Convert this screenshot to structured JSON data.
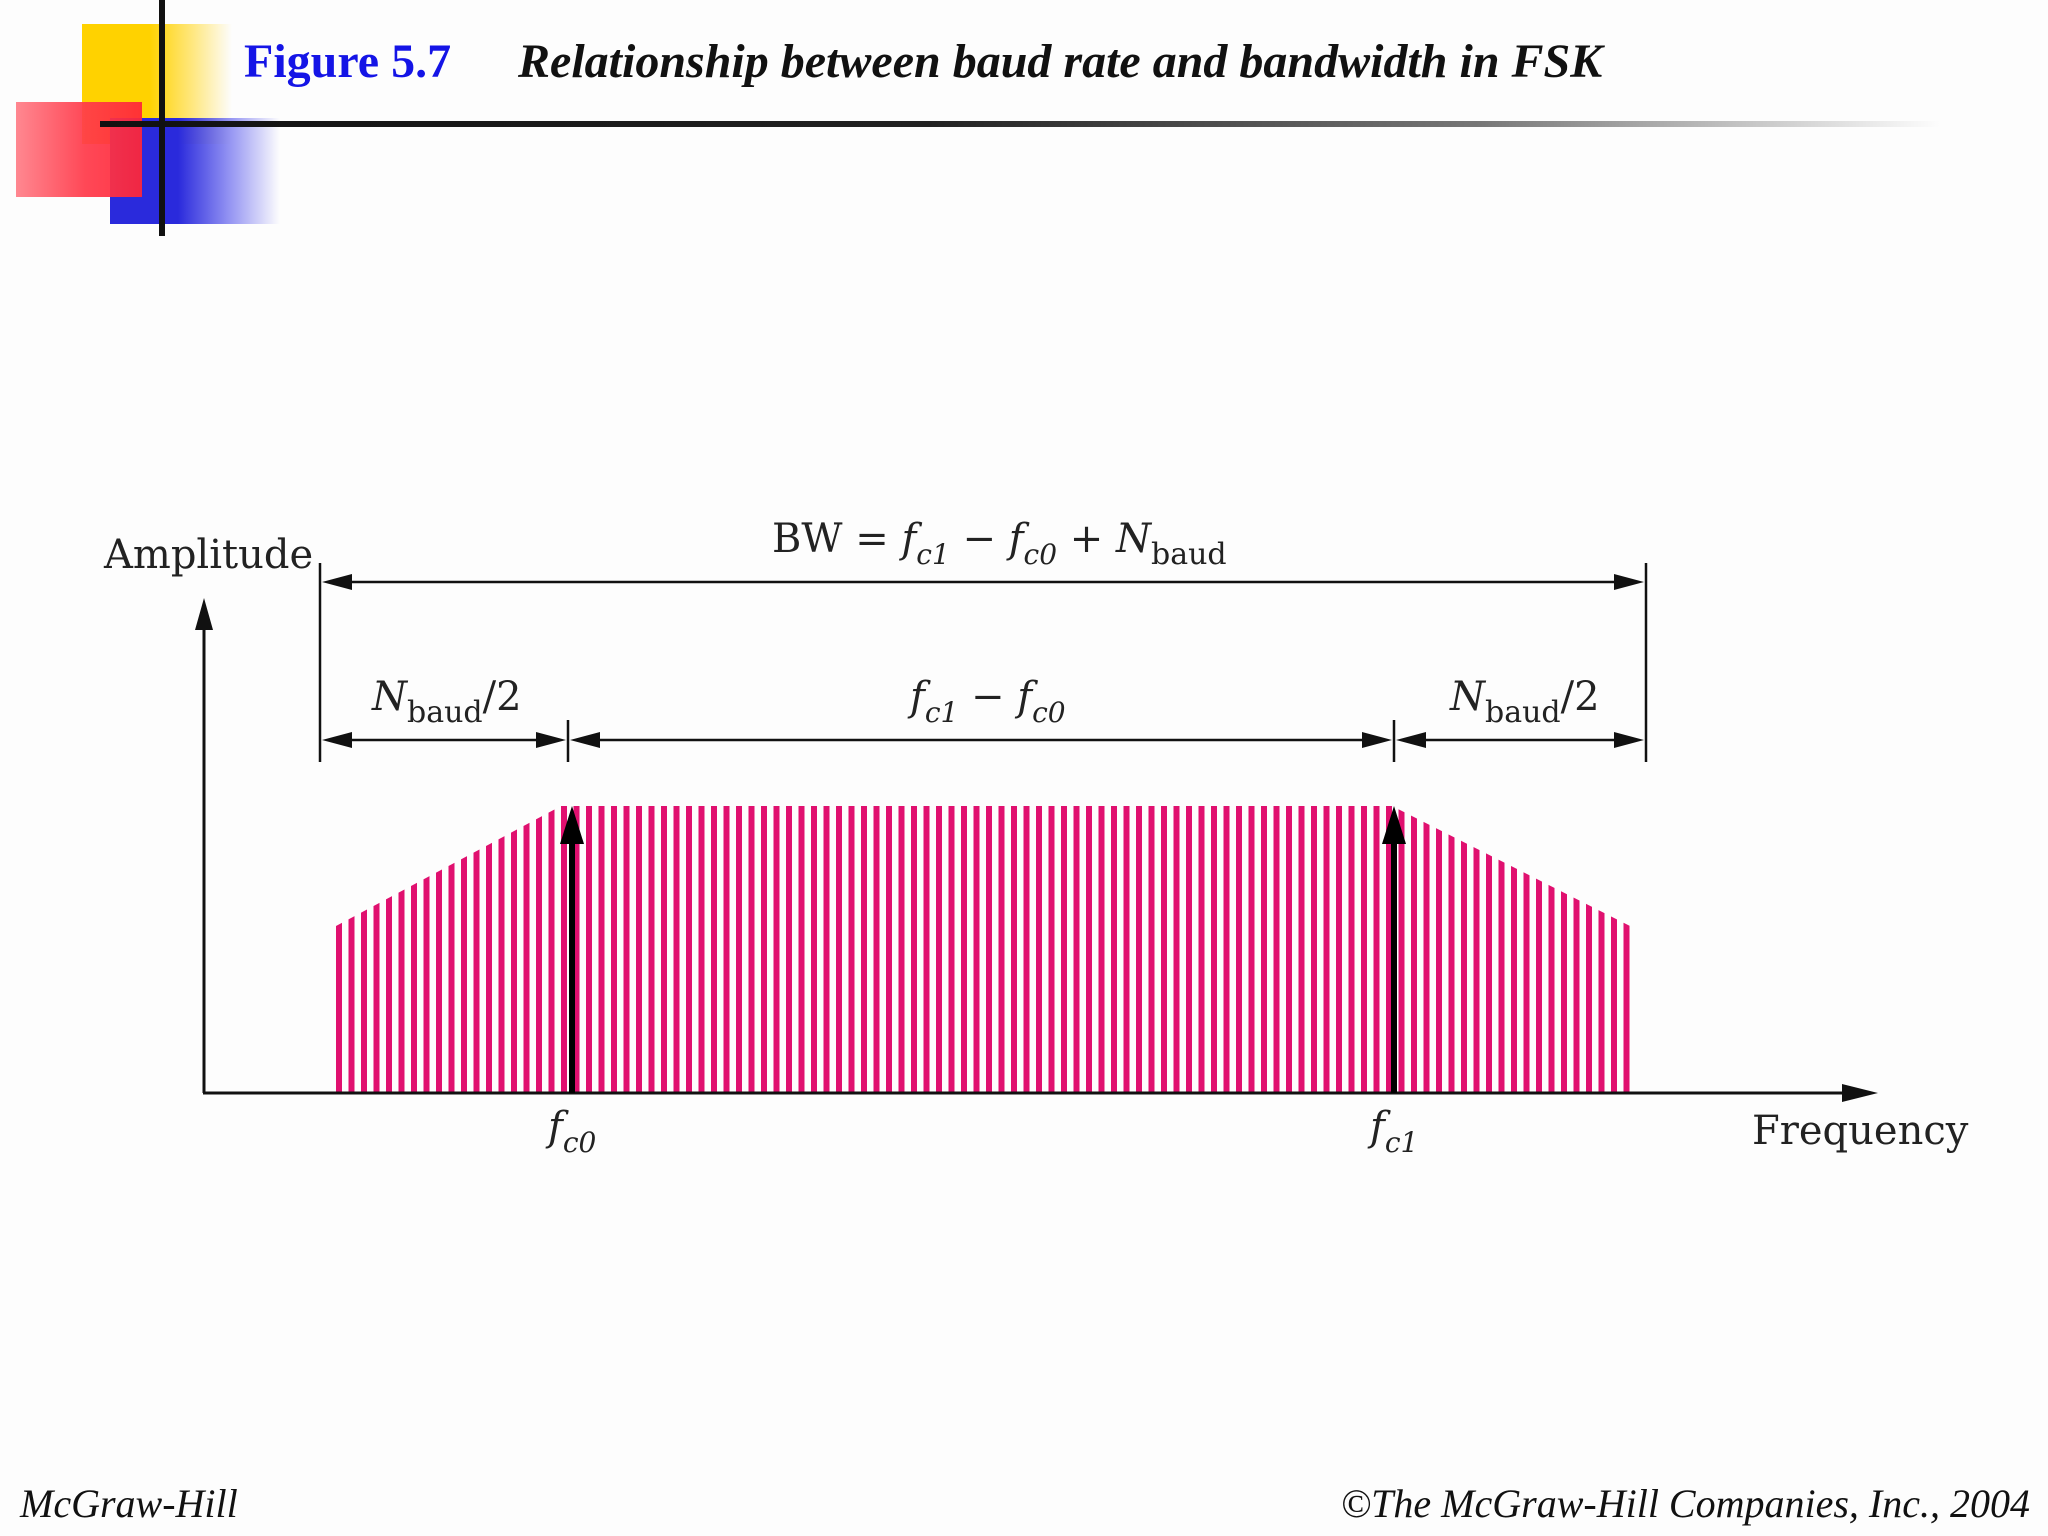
{
  "header": {
    "figure_number": "Figure 5.7",
    "title": "Relationship between baud rate and bandwidth in FSK"
  },
  "diagram": {
    "y_axis_label": "Amplitude",
    "x_axis_label": "Frequency",
    "bw_formula": {
      "prefix": "BW = ",
      "f1": "f",
      "f1_sub": "c1",
      "minus": " − ",
      "f0": "f",
      "f0_sub": "c0",
      "plus": " + ",
      "n": "N",
      "n_sub": "baud"
    },
    "left_segment": {
      "n": "N",
      "n_sub": "baud",
      "suffix": "/2"
    },
    "middle_segment": {
      "f1": "f",
      "f1_sub": "c1",
      "minus": " − ",
      "f0": "f",
      "f0_sub": "c0"
    },
    "right_segment": {
      "n": "N",
      "n_sub": "baud",
      "suffix": "/2"
    },
    "carrier_0": {
      "f": "f",
      "sub": "c0"
    },
    "carrier_1": {
      "f": "f",
      "sub": "c1"
    },
    "band_color": "#e0106f"
  },
  "footer": {
    "left": "McGraw-Hill",
    "right": "©The McGraw-Hill Companies, Inc., 2004"
  }
}
